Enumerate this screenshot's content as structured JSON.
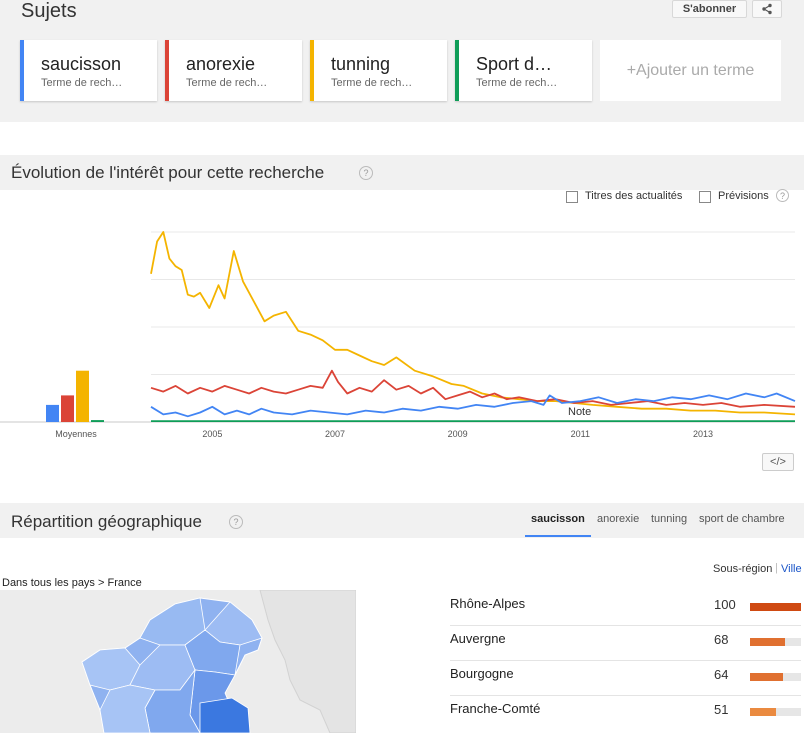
{
  "sujets": {
    "title": "Sujets",
    "subscribe_label": "S'abonner",
    "terms": [
      {
        "name": "saucisson",
        "sub": "Terme de rech…",
        "color": "#4285f4"
      },
      {
        "name": "anorexie",
        "sub": "Terme de rech…",
        "color": "#db4437"
      },
      {
        "name": "tunning",
        "sub": "Terme de rech…",
        "color": "#f4b400"
      },
      {
        "name": "Sport d…",
        "sub": "Terme de rech…",
        "color": "#0f9d58"
      }
    ],
    "add_term": "+Ajouter un terme"
  },
  "interest": {
    "title": "Évolution de l'intérêt pour cette recherche",
    "help": "?",
    "news_label": "Titres des actualités",
    "forecast_label": "Prévisions",
    "note_label": "Note",
    "embed_label": "</>"
  },
  "chart_data": {
    "type": "line",
    "x_tick_labels": [
      "2005",
      "2007",
      "2009",
      "2011",
      "2013"
    ],
    "x_start": 2004.0,
    "x_end": 2014.5,
    "ylim": [
      0,
      100
    ],
    "grid": true,
    "averages_label": "Moyennes",
    "averages": [
      {
        "name": "saucisson",
        "value": 9,
        "color": "#4285f4"
      },
      {
        "name": "anorexie",
        "value": 14,
        "color": "#db4437"
      },
      {
        "name": "tunning",
        "value": 27,
        "color": "#f4b400"
      },
      {
        "name": "Sport de chambre",
        "value": 1,
        "color": "#0f9d58"
      }
    ],
    "series": [
      {
        "name": "tunning",
        "color": "#f4b400",
        "points": [
          [
            2004.0,
            78
          ],
          [
            2004.1,
            95
          ],
          [
            2004.2,
            100
          ],
          [
            2004.3,
            86
          ],
          [
            2004.4,
            82
          ],
          [
            2004.5,
            80
          ],
          [
            2004.6,
            67
          ],
          [
            2004.7,
            66
          ],
          [
            2004.8,
            68
          ],
          [
            2004.95,
            60
          ],
          [
            2005.1,
            72
          ],
          [
            2005.2,
            65
          ],
          [
            2005.35,
            90
          ],
          [
            2005.5,
            74
          ],
          [
            2005.7,
            62
          ],
          [
            2005.85,
            53
          ],
          [
            2006.0,
            56
          ],
          [
            2006.2,
            58
          ],
          [
            2006.4,
            48
          ],
          [
            2006.6,
            46
          ],
          [
            2006.8,
            43
          ],
          [
            2007.0,
            38
          ],
          [
            2007.2,
            38
          ],
          [
            2007.4,
            35
          ],
          [
            2007.6,
            32
          ],
          [
            2007.8,
            30
          ],
          [
            2008.0,
            34
          ],
          [
            2008.3,
            27
          ],
          [
            2008.6,
            24
          ],
          [
            2008.9,
            20
          ],
          [
            2009.1,
            19
          ],
          [
            2009.4,
            15
          ],
          [
            2009.7,
            13
          ],
          [
            2010.0,
            12
          ],
          [
            2010.3,
            11
          ],
          [
            2010.6,
            11
          ],
          [
            2010.9,
            10
          ],
          [
            2011.2,
            9
          ],
          [
            2011.6,
            8
          ],
          [
            2012.0,
            7
          ],
          [
            2012.4,
            7
          ],
          [
            2012.8,
            6
          ],
          [
            2013.2,
            6
          ],
          [
            2013.6,
            5
          ],
          [
            2014.0,
            5
          ],
          [
            2014.5,
            4
          ]
        ]
      },
      {
        "name": "anorexie",
        "color": "#db4437",
        "points": [
          [
            2004.0,
            18
          ],
          [
            2004.2,
            16
          ],
          [
            2004.4,
            19
          ],
          [
            2004.6,
            15
          ],
          [
            2004.8,
            18
          ],
          [
            2005.0,
            16
          ],
          [
            2005.2,
            19
          ],
          [
            2005.4,
            17
          ],
          [
            2005.6,
            15
          ],
          [
            2005.8,
            18
          ],
          [
            2006.0,
            16
          ],
          [
            2006.2,
            15
          ],
          [
            2006.4,
            17
          ],
          [
            2006.6,
            19
          ],
          [
            2006.8,
            18
          ],
          [
            2006.95,
            27
          ],
          [
            2007.05,
            21
          ],
          [
            2007.2,
            15
          ],
          [
            2007.4,
            18
          ],
          [
            2007.6,
            16
          ],
          [
            2007.8,
            22
          ],
          [
            2008.0,
            17
          ],
          [
            2008.2,
            19
          ],
          [
            2008.4,
            15
          ],
          [
            2008.6,
            18
          ],
          [
            2008.8,
            12
          ],
          [
            2009.0,
            14
          ],
          [
            2009.2,
            16
          ],
          [
            2009.4,
            13
          ],
          [
            2009.6,
            15
          ],
          [
            2009.8,
            12
          ],
          [
            2010.0,
            13
          ],
          [
            2010.3,
            11
          ],
          [
            2010.6,
            12
          ],
          [
            2010.9,
            10
          ],
          [
            2011.2,
            11
          ],
          [
            2011.5,
            9
          ],
          [
            2011.8,
            10
          ],
          [
            2012.1,
            11
          ],
          [
            2012.4,
            9
          ],
          [
            2012.7,
            10
          ],
          [
            2013.0,
            9
          ],
          [
            2013.3,
            10
          ],
          [
            2013.6,
            8
          ],
          [
            2014.0,
            9
          ],
          [
            2014.5,
            8
          ]
        ]
      },
      {
        "name": "saucisson",
        "color": "#4285f4",
        "points": [
          [
            2004.0,
            8
          ],
          [
            2004.2,
            4
          ],
          [
            2004.4,
            5
          ],
          [
            2004.6,
            3
          ],
          [
            2004.8,
            5
          ],
          [
            2005.0,
            8
          ],
          [
            2005.2,
            4
          ],
          [
            2005.4,
            6
          ],
          [
            2005.6,
            4
          ],
          [
            2005.8,
            7
          ],
          [
            2006.0,
            5
          ],
          [
            2006.3,
            4
          ],
          [
            2006.6,
            6
          ],
          [
            2006.9,
            5
          ],
          [
            2007.2,
            4
          ],
          [
            2007.5,
            6
          ],
          [
            2007.8,
            5
          ],
          [
            2008.1,
            7
          ],
          [
            2008.4,
            6
          ],
          [
            2008.7,
            8
          ],
          [
            2009.0,
            7
          ],
          [
            2009.3,
            9
          ],
          [
            2009.6,
            8
          ],
          [
            2009.9,
            10
          ],
          [
            2010.2,
            11
          ],
          [
            2010.4,
            9
          ],
          [
            2010.5,
            14
          ],
          [
            2010.7,
            10
          ],
          [
            2011.0,
            11
          ],
          [
            2011.3,
            13
          ],
          [
            2011.6,
            10
          ],
          [
            2011.9,
            12
          ],
          [
            2012.2,
            11
          ],
          [
            2012.5,
            13
          ],
          [
            2012.8,
            12
          ],
          [
            2013.1,
            14
          ],
          [
            2013.4,
            12
          ],
          [
            2013.7,
            15
          ],
          [
            2014.0,
            13
          ],
          [
            2014.2,
            15
          ],
          [
            2014.5,
            11
          ]
        ]
      },
      {
        "name": "Sport de chambre",
        "color": "#0f9d58",
        "points": [
          [
            2004.0,
            0.5
          ],
          [
            2014.5,
            0.5
          ]
        ]
      }
    ]
  },
  "geo": {
    "title": "Répartition géographique",
    "help": "?",
    "tabs": [
      "saucisson",
      "anorexie",
      "tunning",
      "sport de chambre"
    ],
    "subregion_label": "Sous-région",
    "city_label": "Ville",
    "breadcrumb": "Dans tous les pays > France",
    "regions": [
      {
        "name": "Rhône-Alpes",
        "value": "100",
        "pct": 100,
        "color": "#cf4a12"
      },
      {
        "name": "Auvergne",
        "value": "68",
        "pct": 68,
        "color": "#e07030"
      },
      {
        "name": "Bourgogne",
        "value": "64",
        "pct": 64,
        "color": "#e07030"
      },
      {
        "name": "Franche-Comté",
        "value": "51",
        "pct": 51,
        "color": "#ea8a40"
      }
    ]
  }
}
